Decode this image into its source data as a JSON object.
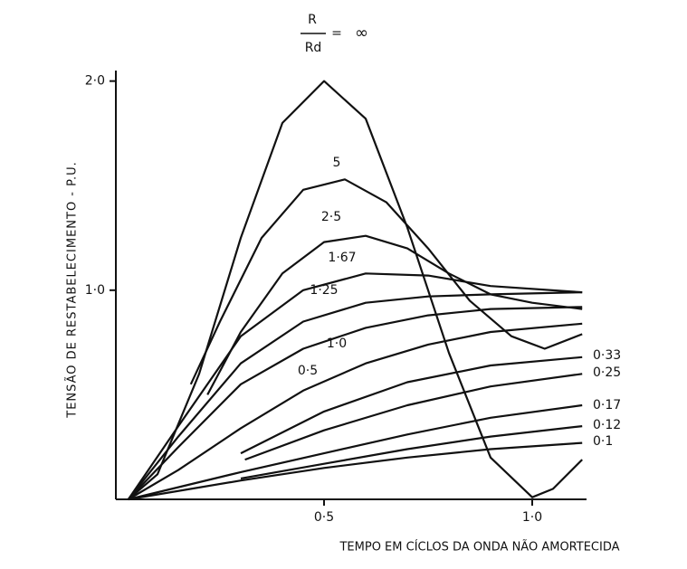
{
  "chart_data": {
    "type": "line",
    "ratio_label": {
      "numerator": "R",
      "denominator": "Rd",
      "equals": "="
    },
    "y_label": "TENSÃO DE RESTABELECIMENTO - P.U.",
    "x_label": "TEMPO EM CÍCLOS DA ONDA NÃO AMORTECIDA",
    "xlim": [
      0,
      1.12
    ],
    "ylim": [
      0,
      2.02
    ],
    "xticks": [
      {
        "value": 0.5,
        "label": "0·5"
      },
      {
        "value": 1.0,
        "label": "1·0"
      }
    ],
    "yticks": [
      {
        "value": 1.0,
        "label": "1·0"
      },
      {
        "value": 2.0,
        "label": "2·0"
      }
    ],
    "color": "#111111",
    "series": [
      {
        "name": "∞",
        "x": [
          0.03,
          0.1,
          0.2,
          0.3,
          0.4,
          0.5,
          0.6,
          0.7,
          0.8,
          0.9,
          1.0,
          1.05,
          1.12
        ],
        "values": [
          0,
          0.12,
          0.6,
          1.25,
          1.8,
          2.0,
          1.82,
          1.3,
          0.7,
          0.2,
          0.01,
          0.05,
          0.19
        ]
      },
      {
        "name": "5",
        "x": [
          0.18,
          0.25,
          0.35,
          0.45,
          0.55,
          0.65,
          0.75,
          0.85,
          0.95,
          1.03,
          1.12
        ],
        "values": [
          0.55,
          0.85,
          1.25,
          1.48,
          1.53,
          1.42,
          1.2,
          0.95,
          0.78,
          0.72,
          0.79
        ]
      },
      {
        "name": "2·5",
        "x": [
          0.22,
          0.3,
          0.4,
          0.5,
          0.6,
          0.7,
          0.8,
          0.9,
          1.0,
          1.12
        ],
        "values": [
          0.5,
          0.8,
          1.08,
          1.23,
          1.26,
          1.2,
          1.08,
          0.98,
          0.94,
          0.91
        ]
      },
      {
        "name": "1·67",
        "x": [
          0.03,
          0.15,
          0.3,
          0.45,
          0.6,
          0.75,
          0.9,
          1.12
        ],
        "values": [
          0,
          0.35,
          0.78,
          1.0,
          1.08,
          1.07,
          1.02,
          0.99
        ]
      },
      {
        "name": "1·25",
        "x": [
          0.03,
          0.15,
          0.3,
          0.45,
          0.6,
          0.75,
          0.9,
          1.12
        ],
        "values": [
          0,
          0.3,
          0.65,
          0.85,
          0.94,
          0.97,
          0.98,
          0.99
        ]
      },
      {
        "name": "1·0",
        "x": [
          0.03,
          0.15,
          0.3,
          0.45,
          0.6,
          0.75,
          0.9,
          1.12
        ],
        "values": [
          0,
          0.25,
          0.55,
          0.72,
          0.82,
          0.88,
          0.91,
          0.92
        ]
      },
      {
        "name": "0·5",
        "x": [
          0.03,
          0.15,
          0.3,
          0.45,
          0.6,
          0.75,
          0.9,
          1.12
        ],
        "values": [
          0,
          0.14,
          0.34,
          0.52,
          0.65,
          0.74,
          0.8,
          0.84
        ]
      },
      {
        "name": "0·33",
        "x": [
          0.3,
          0.5,
          0.7,
          0.9,
          1.12
        ],
        "values": [
          0.22,
          0.42,
          0.56,
          0.64,
          0.68
        ]
      },
      {
        "name": "0·25",
        "x": [
          0.31,
          0.5,
          0.7,
          0.9,
          1.12
        ],
        "values": [
          0.19,
          0.33,
          0.45,
          0.54,
          0.6
        ]
      },
      {
        "name": "0·17",
        "x": [
          0.03,
          0.3,
          0.5,
          0.7,
          0.9,
          1.12
        ],
        "values": [
          0,
          0.13,
          0.22,
          0.31,
          0.39,
          0.45
        ]
      },
      {
        "name": "0·12",
        "x": [
          0.3,
          0.5,
          0.7,
          0.9,
          1.12
        ],
        "values": [
          0.1,
          0.17,
          0.24,
          0.3,
          0.35
        ]
      },
      {
        "name": "0·1",
        "x": [
          0.03,
          0.3,
          0.5,
          0.7,
          0.9,
          1.12
        ],
        "values": [
          0,
          0.09,
          0.15,
          0.2,
          0.24,
          0.27
        ]
      }
    ]
  }
}
